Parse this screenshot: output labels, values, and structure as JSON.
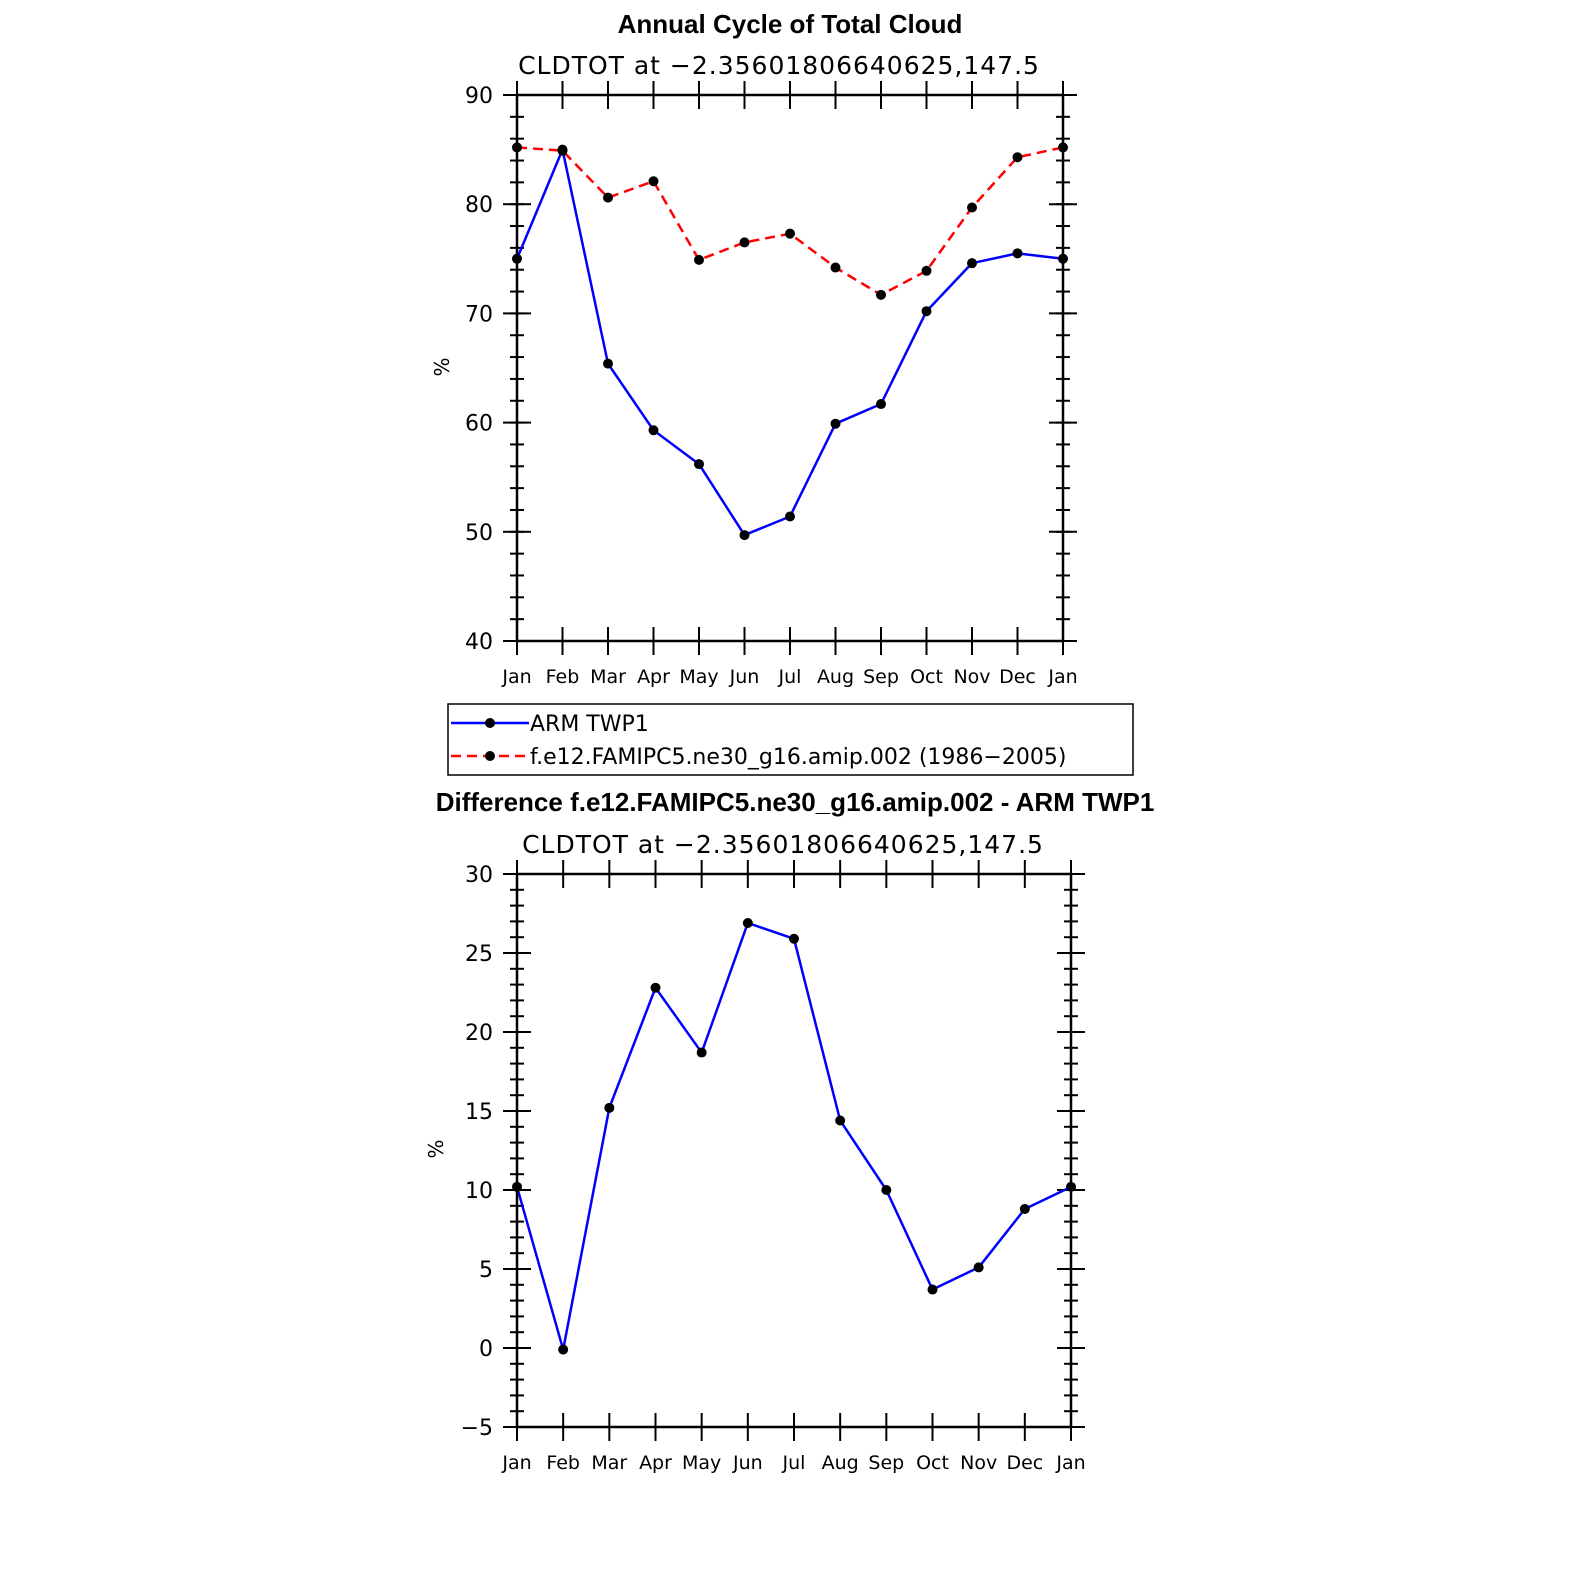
{
  "chart_data": [
    {
      "type": "line",
      "title": "Annual Cycle of Total Cloud",
      "subtitle": "CLDTOT at −2.35601806640625,147.5",
      "xlabel": "",
      "ylabel": "%",
      "ylim": [
        40,
        90
      ],
      "yticks": [
        40,
        50,
        60,
        70,
        80,
        90
      ],
      "categories": [
        "Jan",
        "Feb",
        "Mar",
        "Apr",
        "May",
        "Jun",
        "Jul",
        "Aug",
        "Sep",
        "Oct",
        "Nov",
        "Dec",
        "Jan"
      ],
      "series": [
        {
          "name": "ARM TWP1",
          "color": "#0000ff",
          "style": "solid",
          "values": [
            75.0,
            85.0,
            65.4,
            59.3,
            56.2,
            49.7,
            51.4,
            59.9,
            61.7,
            70.2,
            74.6,
            75.5,
            75.0
          ]
        },
        {
          "name": "f.e12.FAMIPC5.ne30_g16.amip.002 (1986−2005)",
          "color": "#ff0000",
          "style": "dashed",
          "values": [
            85.2,
            84.9,
            80.6,
            82.1,
            74.9,
            76.5,
            77.3,
            74.2,
            71.7,
            73.9,
            79.7,
            84.3,
            85.2
          ]
        }
      ],
      "legend": "bottom"
    },
    {
      "type": "line",
      "title": "Difference f.e12.FAMIPC5.ne30_g16.amip.002 - ARM TWP1",
      "subtitle": "CLDTOT at −2.35601806640625,147.5",
      "xlabel": "",
      "ylabel": "%",
      "ylim": [
        -5,
        30
      ],
      "yticks": [
        -5,
        0,
        5,
        10,
        15,
        20,
        25,
        30
      ],
      "ytick_labels": [
        "−5",
        "0",
        "5",
        "10",
        "15",
        "20",
        "25",
        "30"
      ],
      "categories": [
        "Jan",
        "Feb",
        "Mar",
        "Apr",
        "May",
        "Jun",
        "Jul",
        "Aug",
        "Sep",
        "Oct",
        "Nov",
        "Dec",
        "Jan"
      ],
      "series": [
        {
          "name": "Difference",
          "color": "#0000ff",
          "style": "solid",
          "values": [
            10.2,
            -0.1,
            15.2,
            22.8,
            18.7,
            26.9,
            25.9,
            14.4,
            10.0,
            3.7,
            5.1,
            8.8,
            10.2
          ]
        }
      ]
    }
  ]
}
